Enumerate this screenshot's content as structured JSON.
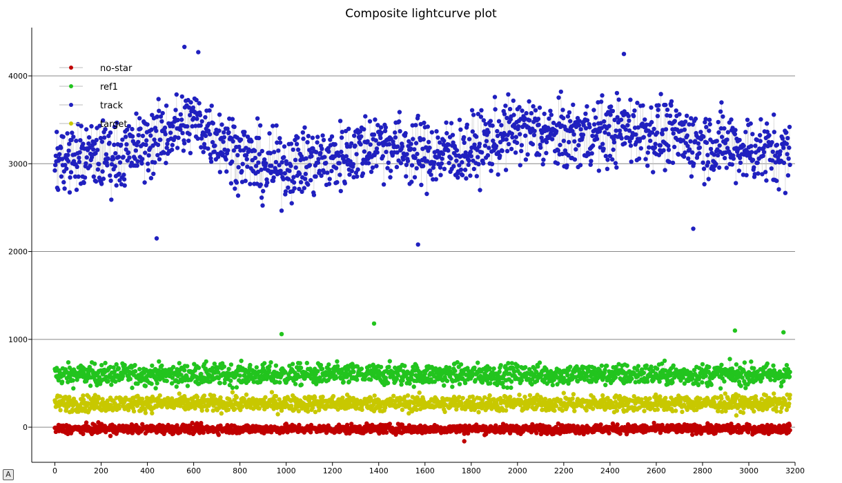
{
  "chart_data": {
    "type": "scatter",
    "title": "Composite lightcurve plot",
    "xlabel": "",
    "ylabel": "",
    "xlim": [
      -100,
      3200
    ],
    "ylim": [
      -400,
      4550
    ],
    "x_ticks": [
      0,
      200,
      400,
      600,
      800,
      1000,
      1200,
      1400,
      1600,
      1800,
      2000,
      2200,
      2400,
      2600,
      2800,
      3000,
      3200
    ],
    "y_ticks": [
      0,
      1000,
      2000,
      3000,
      4000
    ],
    "grid": "horizontal",
    "legend_position": "top-left",
    "n_points_per_series": 3180,
    "series": [
      {
        "name": "no-star",
        "color": "#c00000",
        "mean": -20,
        "spread": 50,
        "outliers": [
          {
            "x": 1770,
            "y": -160
          },
          {
            "x": 240,
            "y": -100
          }
        ]
      },
      {
        "name": "ref1",
        "color": "#22c41e",
        "mean": 600,
        "spread": 120,
        "outliers": [
          {
            "x": 1380,
            "y": 1180
          },
          {
            "x": 2940,
            "y": 1100
          },
          {
            "x": 980,
            "y": 1060
          },
          {
            "x": 3150,
            "y": 1080
          }
        ]
      },
      {
        "name": "track",
        "color": "#2020bf",
        "mean": 3250,
        "spread": 380,
        "trend": [
          {
            "x": 0,
            "y": 3050
          },
          {
            "x": 300,
            "y": 3100
          },
          {
            "x": 600,
            "y": 3500
          },
          {
            "x": 900,
            "y": 2950
          },
          {
            "x": 1200,
            "y": 3050
          },
          {
            "x": 1400,
            "y": 3250
          },
          {
            "x": 1600,
            "y": 3100
          },
          {
            "x": 1800,
            "y": 3150
          },
          {
            "x": 2000,
            "y": 3400
          },
          {
            "x": 2200,
            "y": 3300
          },
          {
            "x": 2500,
            "y": 3400
          },
          {
            "x": 2800,
            "y": 3250
          },
          {
            "x": 3180,
            "y": 3100
          }
        ],
        "outliers": [
          {
            "x": 560,
            "y": 4330
          },
          {
            "x": 620,
            "y": 4270
          },
          {
            "x": 2460,
            "y": 4250
          },
          {
            "x": 1570,
            "y": 2080
          },
          {
            "x": 440,
            "y": 2150
          },
          {
            "x": 2760,
            "y": 2260
          }
        ]
      },
      {
        "name": "target",
        "color": "#c8c800",
        "mean": 270,
        "spread": 90,
        "outliers": [
          {
            "x": 620,
            "y": 20
          },
          {
            "x": 1620,
            "y": -20
          }
        ]
      }
    ]
  }
}
